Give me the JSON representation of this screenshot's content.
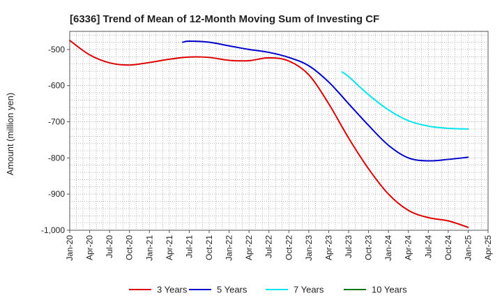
{
  "chart_data": {
    "type": "line",
    "title": "[6336]  Trend of Mean of 12-Month Moving Sum of Investing CF",
    "xlabel": "",
    "ylabel": "Amount (million yen)",
    "ylim": [
      -1000,
      -450
    ],
    "yticks": [
      -500,
      -600,
      -700,
      -800,
      -900,
      -1000
    ],
    "ytick_labels": [
      "-500",
      "-600",
      "-700",
      "-800",
      "-900",
      "-1,000"
    ],
    "x_start": "Jan-20",
    "x_end": "Apr-25",
    "xticks": [
      "Jan-20",
      "Apr-20",
      "Jul-20",
      "Oct-20",
      "Jan-21",
      "Apr-21",
      "Jul-21",
      "Oct-21",
      "Jan-22",
      "Apr-22",
      "Jul-22",
      "Oct-22",
      "Jan-23",
      "Apr-23",
      "Jul-23",
      "Oct-23",
      "Jan-24",
      "Apr-24",
      "Jul-24",
      "Oct-24",
      "Jan-25",
      "Apr-25"
    ],
    "grid": true,
    "legend_position": "bottom",
    "series": [
      {
        "name": "3 Years",
        "color": "#dd0000",
        "x": [
          "Jan-20",
          "Apr-20",
          "Jul-20",
          "Oct-20",
          "Jan-21",
          "Apr-21",
          "Jul-21",
          "Oct-21",
          "Jan-22",
          "Apr-22",
          "Jul-22",
          "Oct-22",
          "Jan-23",
          "Apr-23",
          "Jul-23",
          "Oct-23",
          "Jan-24",
          "Apr-24",
          "Jul-24",
          "Oct-24",
          "Jan-25"
        ],
        "values": [
          -475,
          -515,
          -537,
          -543,
          -536,
          -527,
          -521,
          -522,
          -530,
          -531,
          -523,
          -532,
          -570,
          -650,
          -745,
          -830,
          -900,
          -945,
          -965,
          -974,
          -992
        ]
      },
      {
        "name": "5 Years",
        "color": "#0000cc",
        "x": [
          "Jun-21",
          "Jul-21",
          "Oct-21",
          "Jan-22",
          "Apr-22",
          "Jul-22",
          "Oct-22",
          "Jan-23",
          "Apr-23",
          "Jul-23",
          "Oct-23",
          "Jan-24",
          "Apr-24",
          "Jul-24",
          "Oct-24",
          "Jan-25"
        ],
        "values": [
          -480,
          -477,
          -480,
          -490,
          -500,
          -508,
          -522,
          -545,
          -590,
          -650,
          -710,
          -765,
          -800,
          -808,
          -804,
          -798
        ]
      },
      {
        "name": "7 Years",
        "color": "#00e5ee",
        "x": [
          "Jun-23",
          "Jul-23",
          "Oct-23",
          "Jan-24",
          "Apr-24",
          "Jul-24",
          "Oct-24",
          "Jan-25"
        ],
        "values": [
          -562,
          -575,
          -625,
          -667,
          -697,
          -712,
          -718,
          -720
        ]
      },
      {
        "name": "10 Years",
        "color": "#007700",
        "x": [],
        "values": []
      }
    ]
  }
}
